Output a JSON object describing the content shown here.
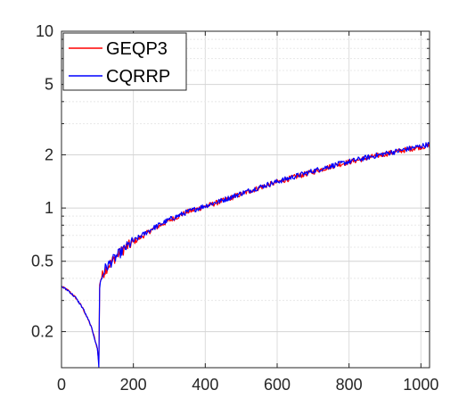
{
  "chart_data": {
    "type": "line",
    "title": "",
    "xlabel": "",
    "ylabel": "",
    "xlim": [
      0,
      1024
    ],
    "ylim": [
      0.125,
      10
    ],
    "yscale": "log",
    "grid": true,
    "xticks": [
      0,
      200,
      400,
      600,
      800,
      1000
    ],
    "xtick_labels": [
      "0",
      "200",
      "400",
      "600",
      "800",
      "1000"
    ],
    "yticks": [
      0.2,
      0.5,
      1,
      2,
      5,
      10
    ],
    "ytick_labels": [
      "0.2",
      "0.5",
      "1",
      "2",
      "5",
      "10"
    ],
    "legend_position": "top-left",
    "series": [
      {
        "name": "GEQP3",
        "color": "#ff0000",
        "x": [
          0,
          20,
          40,
          60,
          80,
          90,
          100,
          104,
          106,
          110,
          120,
          140,
          160,
          180,
          200,
          250,
          300,
          350,
          400,
          450,
          500,
          550,
          600,
          650,
          700,
          750,
          800,
          850,
          900,
          950,
          1000,
          1024
        ],
        "y": [
          0.36,
          0.34,
          0.31,
          0.27,
          0.22,
          0.19,
          0.16,
          0.13,
          0.38,
          0.4,
          0.44,
          0.5,
          0.55,
          0.6,
          0.64,
          0.75,
          0.85,
          0.95,
          1.02,
          1.1,
          1.2,
          1.3,
          1.4,
          1.5,
          1.6,
          1.72,
          1.82,
          1.92,
          2.02,
          2.12,
          2.22,
          2.25
        ]
      },
      {
        "name": "CQRRP",
        "color": "#0000ff",
        "x": [
          0,
          20,
          40,
          60,
          80,
          90,
          100,
          104,
          106,
          110,
          120,
          140,
          160,
          180,
          200,
          250,
          300,
          350,
          400,
          450,
          500,
          550,
          600,
          650,
          700,
          750,
          800,
          850,
          900,
          950,
          1000,
          1024
        ],
        "y": [
          0.36,
          0.34,
          0.31,
          0.27,
          0.22,
          0.19,
          0.16,
          0.13,
          0.36,
          0.39,
          0.45,
          0.5,
          0.55,
          0.6,
          0.65,
          0.76,
          0.86,
          0.95,
          1.03,
          1.11,
          1.21,
          1.31,
          1.41,
          1.51,
          1.62,
          1.73,
          1.83,
          1.93,
          2.03,
          2.13,
          2.24,
          2.3
        ]
      }
    ]
  }
}
